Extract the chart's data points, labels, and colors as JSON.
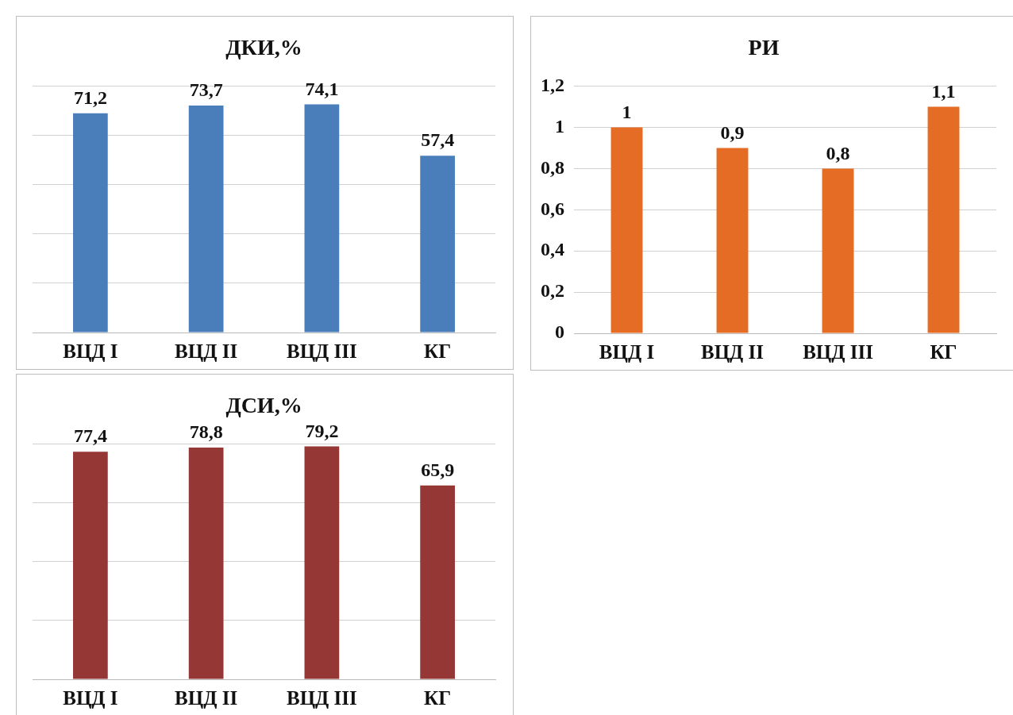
{
  "chart_data": [
    {
      "type": "bar",
      "title": "ДКИ,%",
      "categories": [
        "ВЦД I",
        "ВЦД II",
        "ВЦД III",
        "КГ"
      ],
      "values": [
        71.2,
        73.7,
        74.1,
        57.4
      ],
      "value_labels": [
        "71,2",
        "73,7",
        "74,1",
        "57,4"
      ],
      "color": "#4a7ebb",
      "ylim": [
        0,
        80
      ],
      "yticks": [
        {
          "value": 0,
          "label": null
        },
        {
          "value": 16,
          "label": null
        },
        {
          "value": 32,
          "label": null
        },
        {
          "value": 48,
          "label": null
        },
        {
          "value": 64,
          "label": null
        },
        {
          "value": 80,
          "label": null
        }
      ],
      "grid": "y",
      "legend": false,
      "tick_labels": "x"
    },
    {
      "type": "bar",
      "title": "РИ",
      "categories": [
        "ВЦД I",
        "ВЦД II",
        "ВЦД III",
        "КГ"
      ],
      "values": [
        1,
        0.9,
        0.8,
        1.1
      ],
      "value_labels": [
        "1",
        "0,9",
        "0,8",
        "1,1"
      ],
      "color": "#e46c24",
      "ylim": [
        0,
        1.2
      ],
      "yticks": [
        0,
        {
          "value": 0.2,
          "label": "0,2"
        },
        {
          "value": 0.4,
          "label": "0,4"
        },
        {
          "value": 0.6,
          "label": "0,6"
        },
        {
          "value": 0.8,
          "label": "0,8"
        },
        1,
        {
          "value": 1.2,
          "label": "1,2"
        }
      ],
      "grid": "y",
      "legend": false
    },
    {
      "type": "bar",
      "title": "ДСИ,%",
      "categories": [
        "ВЦД I",
        "ВЦД II",
        "ВЦД III",
        "КГ"
      ],
      "values": [
        77.4,
        78.8,
        79.2,
        65.9
      ],
      "value_labels": [
        "77,4",
        "78,8",
        "79,2",
        "65,9"
      ],
      "color": "#953735",
      "ylim": [
        0,
        80
      ],
      "yticks": [
        {
          "value": 0,
          "label": null
        },
        {
          "value": 20,
          "label": null
        },
        {
          "value": 40,
          "label": null
        },
        {
          "value": 60,
          "label": null
        },
        {
          "value": 80,
          "label": null
        }
      ],
      "grid": "y",
      "legend": false,
      "tick_labels": "x"
    }
  ]
}
